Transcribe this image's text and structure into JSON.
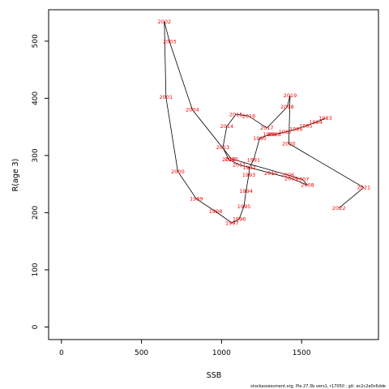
{
  "chart_data": {
    "type": "line",
    "xlabel": "SSB",
    "ylabel": "R(age 3)",
    "xlim": [
      -80,
      1980
    ],
    "ylim": [
      -22,
      555
    ],
    "x_ticks": [
      0,
      500,
      1000,
      1500
    ],
    "y_ticks": [
      0,
      100,
      200,
      300,
      400,
      500
    ],
    "line_color": "#000000",
    "label_color": "#ff0000",
    "points": [
      {
        "label": "1983",
        "x": 1648,
        "y": 365
      },
      {
        "label": "1984",
        "x": 1588,
        "y": 358
      },
      {
        "label": "1985",
        "x": 1527,
        "y": 352
      },
      {
        "label": "1986",
        "x": 1465,
        "y": 346
      },
      {
        "label": "1987",
        "x": 1398,
        "y": 341
      },
      {
        "label": "1988",
        "x": 1330,
        "y": 337
      },
      {
        "label": "1989",
        "x": 1300,
        "y": 337
      },
      {
        "label": "1990",
        "x": 1238,
        "y": 330
      },
      {
        "label": "1991",
        "x": 1200,
        "y": 292
      },
      {
        "label": "1992",
        "x": 1173,
        "y": 279
      },
      {
        "label": "1993",
        "x": 1170,
        "y": 266
      },
      {
        "label": "1994",
        "x": 1153,
        "y": 238
      },
      {
        "label": "1995",
        "x": 1140,
        "y": 211
      },
      {
        "label": "1996",
        "x": 1110,
        "y": 189
      },
      {
        "label": "1997",
        "x": 1065,
        "y": 182
      },
      {
        "label": "1998",
        "x": 963,
        "y": 202
      },
      {
        "label": "1999",
        "x": 843,
        "y": 224
      },
      {
        "label": "2000",
        "x": 727,
        "y": 272
      },
      {
        "label": "2001",
        "x": 653,
        "y": 402
      },
      {
        "label": "2002",
        "x": 643,
        "y": 534
      },
      {
        "label": "2003",
        "x": 675,
        "y": 499
      },
      {
        "label": "2004",
        "x": 818,
        "y": 380
      },
      {
        "label": "2005",
        "x": 1062,
        "y": 294
      },
      {
        "label": "2006",
        "x": 1413,
        "y": 266
      },
      {
        "label": "2007",
        "x": 1505,
        "y": 258
      },
      {
        "label": "2008",
        "x": 1537,
        "y": 248
      },
      {
        "label": "2009",
        "x": 1435,
        "y": 260
      },
      {
        "label": "2010",
        "x": 1308,
        "y": 269
      },
      {
        "label": "2011",
        "x": 1110,
        "y": 284
      },
      {
        "label": "2012",
        "x": 1045,
        "y": 293
      },
      {
        "label": "2013",
        "x": 1008,
        "y": 314
      },
      {
        "label": "2014",
        "x": 1033,
        "y": 351
      },
      {
        "label": "2015",
        "x": 1090,
        "y": 372
      },
      {
        "label": "2016",
        "x": 1170,
        "y": 369
      },
      {
        "label": "2017",
        "x": 1283,
        "y": 348
      },
      {
        "label": "2018",
        "x": 1410,
        "y": 385
      },
      {
        "label": "2019",
        "x": 1428,
        "y": 405
      },
      {
        "label": "2020",
        "x": 1420,
        "y": 321
      },
      {
        "label": "2021",
        "x": 1888,
        "y": 244
      },
      {
        "label": "2022",
        "x": 1733,
        "y": 208
      }
    ]
  },
  "footer": {
    "text": "stockassessment.org, Ple 27.3b vers1, r17050 , git: ec2c2a0c6dde"
  }
}
